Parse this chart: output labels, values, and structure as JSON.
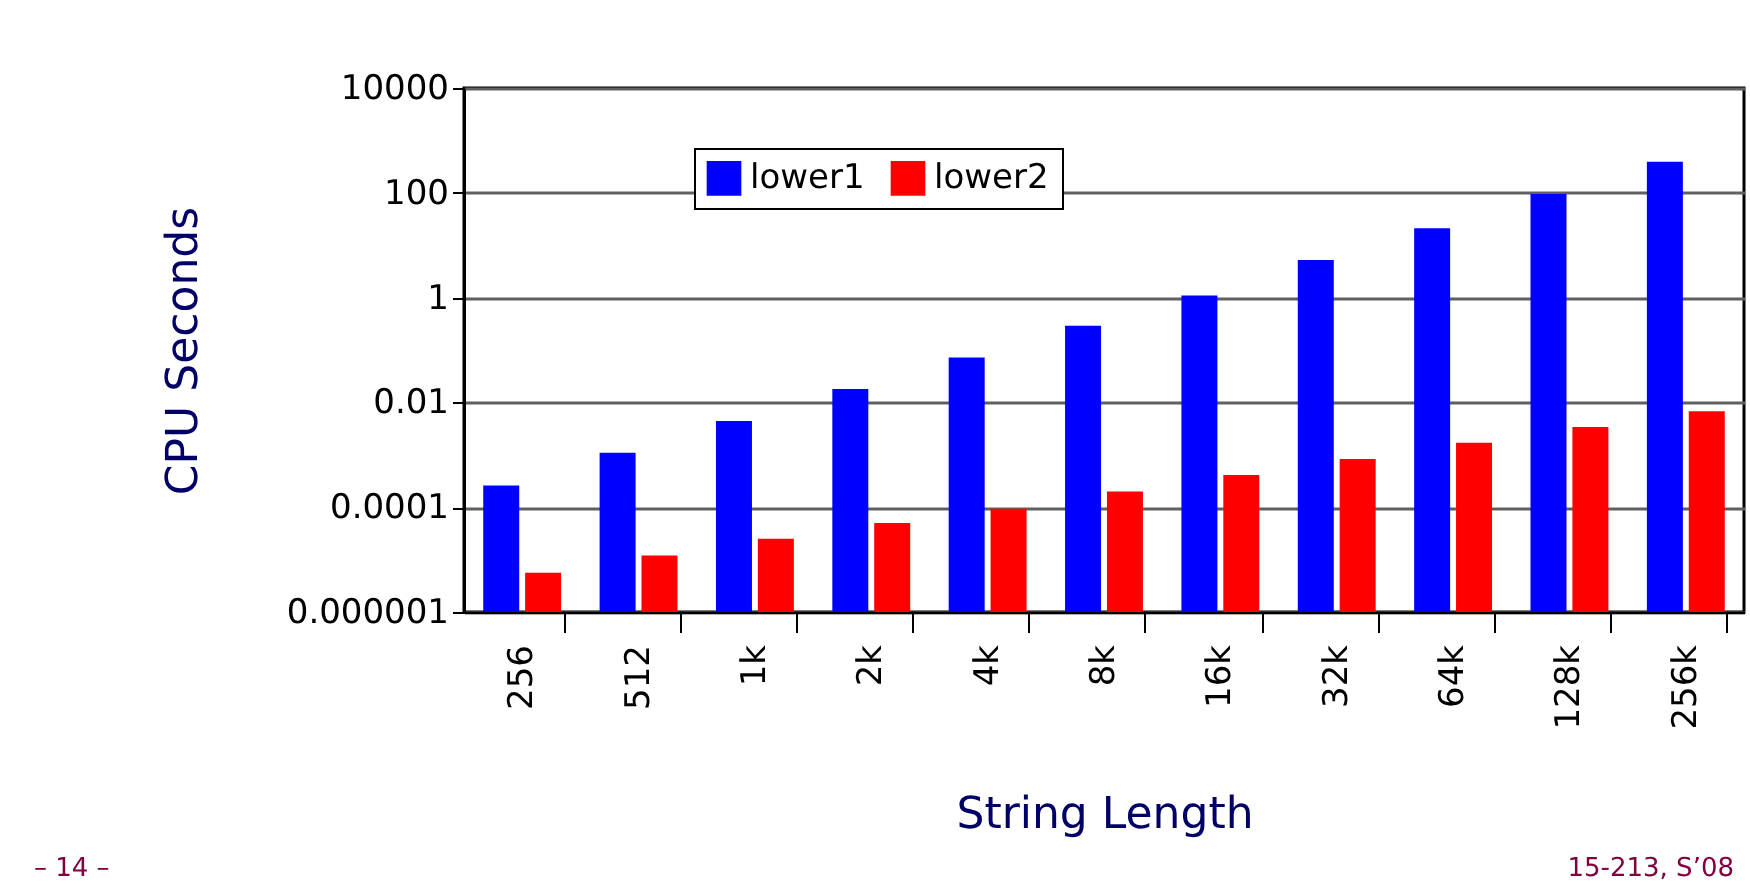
{
  "chart_data": {
    "type": "bar",
    "xlabel": "String Length",
    "ylabel": "CPU Seconds",
    "categories": [
      "256",
      "512",
      "1k",
      "2k",
      "4k",
      "8k",
      "16k",
      "32k",
      "64k",
      "128k",
      "256k"
    ],
    "series": [
      {
        "name": "lower1",
        "color": "#0000ff",
        "values": [
          0.00026,
          0.0011,
          0.0044,
          0.018,
          0.072,
          0.29,
          1.1,
          5.2,
          21,
          95,
          390
        ]
      },
      {
        "name": "lower2",
        "color": "#ff0000",
        "values": [
          5.6e-06,
          1.2e-05,
          2.5e-05,
          5e-05,
          9.3e-05,
          0.0002,
          0.00041,
          0.00083,
          0.0017,
          0.0034,
          0.0068
        ]
      }
    ],
    "log": true,
    "ylim": [
      1e-06,
      10000
    ],
    "yticks": [
      {
        "value": 1e-06,
        "label": "0.000001"
      },
      0.0001,
      0.01,
      1,
      100,
      10000
    ],
    "grid": "y",
    "legend": "top",
    "annotations": [
      "– 14 –",
      "15-213, S’08"
    ]
  }
}
